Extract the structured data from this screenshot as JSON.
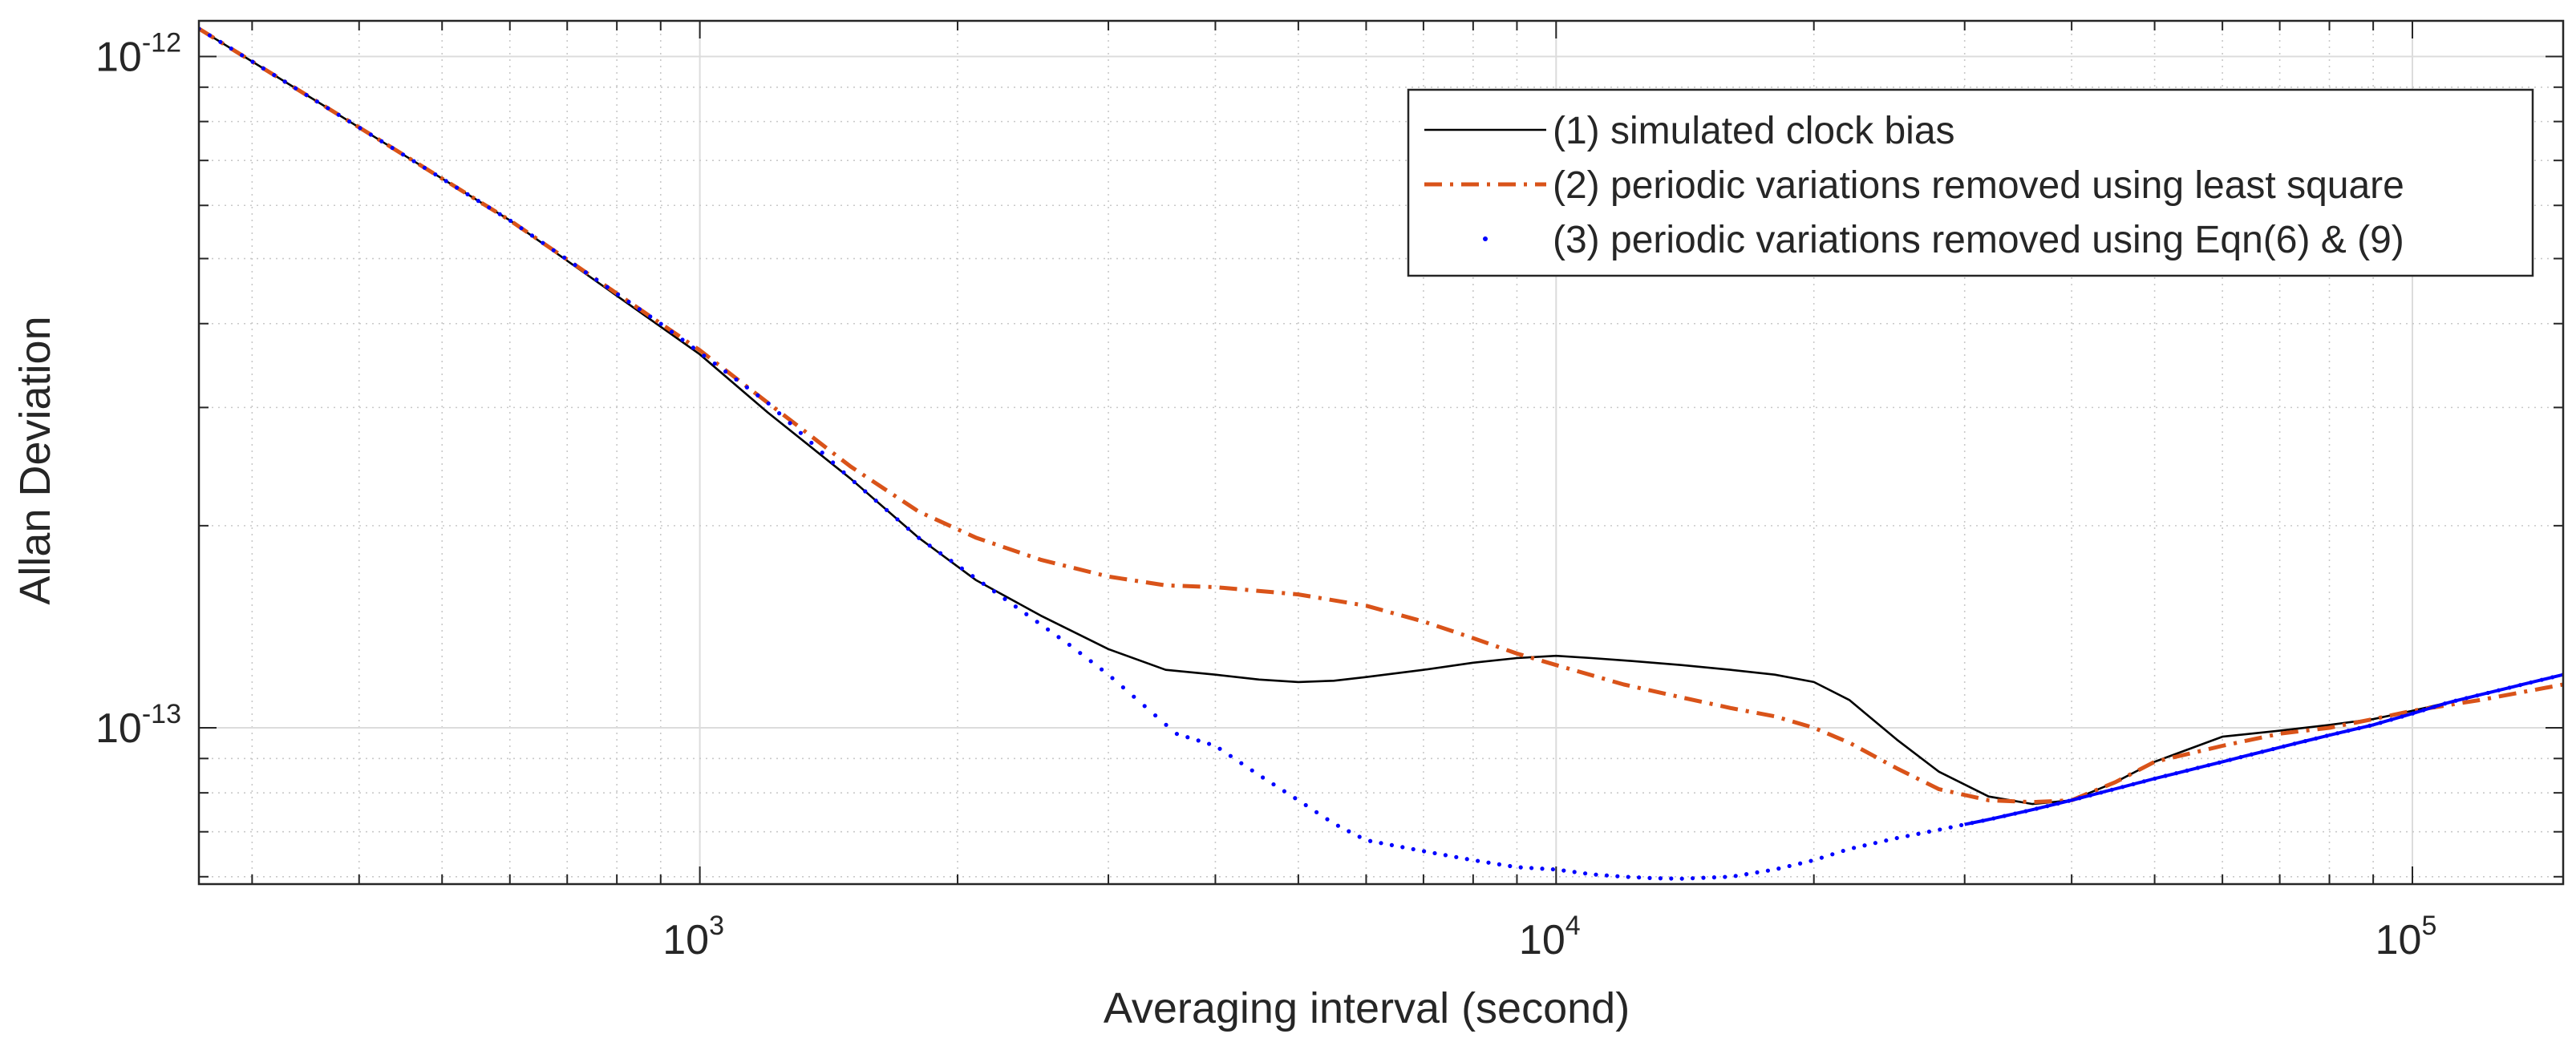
{
  "chart_data": {
    "type": "line",
    "title": "",
    "xlabel": "Averaging interval (second)",
    "ylabel": "Allan Deviation",
    "xscale": "log",
    "yscale": "log",
    "xlim": [
      260,
      150000
    ],
    "ylim": [
      5.85e-14,
      1.13e-12
    ],
    "grid": true,
    "legend_position": "top-right",
    "x_ticks": [
      {
        "value": 1000,
        "base": "10",
        "exp": "3"
      },
      {
        "value": 10000,
        "base": "10",
        "exp": "4"
      },
      {
        "value": 100000,
        "base": "10",
        "exp": "5"
      }
    ],
    "y_ticks": [
      {
        "value": 1e-13,
        "base": "10",
        "exp": "-13"
      },
      {
        "value": 1e-12,
        "base": "10",
        "exp": "-12"
      }
    ],
    "series": [
      {
        "name": "(1) simulated clock bias",
        "style": "solid",
        "color": "#000000",
        "x": [
          260,
          600,
          1000,
          1200,
          1500,
          1800,
          2100,
          2500,
          3000,
          3500,
          4000,
          4500,
          5000,
          5500,
          6000,
          7000,
          8000,
          9000,
          10000,
          11000,
          12000,
          14000,
          16000,
          18000,
          20000,
          22000,
          25000,
          28000,
          32000,
          36000,
          40000,
          45000,
          50000,
          60000,
          70000,
          80000,
          90000,
          100000,
          110000,
          120000,
          135000,
          150000
        ],
        "values": [
          1.1e-12,
          5.7e-13,
          3.6e-13,
          2.95e-13,
          2.35e-13,
          1.92e-13,
          1.66e-13,
          1.47e-13,
          1.31e-13,
          1.22e-13,
          1.2e-13,
          1.18e-13,
          1.17e-13,
          1.175e-13,
          1.19e-13,
          1.22e-13,
          1.25e-13,
          1.27e-13,
          1.28e-13,
          1.27e-13,
          1.26e-13,
          1.24e-13,
          1.22e-13,
          1.2e-13,
          1.17e-13,
          1.1e-13,
          9.6e-14,
          8.6e-14,
          7.9e-14,
          7.7e-14,
          7.8e-14,
          8.3e-14,
          8.9e-14,
          9.7e-14,
          9.9e-14,
          1.01e-13,
          1.03e-13,
          1.06e-13,
          1.09e-13,
          1.12e-13,
          1.16e-13,
          1.2e-13
        ]
      },
      {
        "name": "(2) periodic variations removed using least square",
        "style": "dashdot",
        "color": "#D95319",
        "x": [
          260,
          600,
          1000,
          1200,
          1500,
          1800,
          2100,
          2500,
          3000,
          3500,
          4000,
          5000,
          6000,
          7000,
          8000,
          9000,
          10000,
          12000,
          14000,
          16000,
          18000,
          20000,
          22000,
          25000,
          28000,
          32000,
          36000,
          40000,
          45000,
          50000,
          60000,
          70000,
          80000,
          90000,
          100000,
          120000,
          150000
        ],
        "values": [
          1.1e-12,
          5.7e-13,
          3.65e-13,
          3.05e-13,
          2.45e-13,
          2.1e-13,
          1.92e-13,
          1.78e-13,
          1.68e-13,
          1.63e-13,
          1.62e-13,
          1.58e-13,
          1.52e-13,
          1.44e-13,
          1.36e-13,
          1.29e-13,
          1.24e-13,
          1.16e-13,
          1.11e-13,
          1.07e-13,
          1.04e-13,
          1e-13,
          9.5e-14,
          8.7e-14,
          8.1e-14,
          7.8e-14,
          7.75e-14,
          7.8e-14,
          8.3e-14,
          8.9e-14,
          9.4e-14,
          9.8e-14,
          1e-13,
          1.03e-13,
          1.06e-13,
          1.1e-13,
          1.16e-13
        ]
      },
      {
        "name": "(3) periodic variations removed using Eqn(6) & (9)",
        "style": "dotted",
        "color": "#0000FF",
        "x": [
          260,
          600,
          900,
          1200,
          1500,
          1800,
          2100,
          2400,
          2700,
          3000,
          3300,
          3600,
          4000,
          4500,
          5000,
          5500,
          6000,
          7000,
          8000,
          9000,
          10000,
          11000,
          12000,
          13000,
          14000,
          16000,
          18000,
          20000,
          22000,
          25000,
          28000,
          32000,
          36000,
          40000,
          50000,
          60000,
          70000,
          80000,
          90000,
          100000,
          110000,
          120000,
          150000
        ],
        "values": [
          1.1e-12,
          5.7e-13,
          4e-13,
          3.05e-13,
          2.35e-13,
          1.92e-13,
          1.67e-13,
          1.48e-13,
          1.33e-13,
          1.2e-13,
          1.08e-13,
          9.8e-14,
          9.4e-14,
          8.5e-14,
          7.8e-14,
          7.2e-14,
          6.8e-14,
          6.55e-14,
          6.35e-14,
          6.2e-14,
          6.15e-14,
          6.05e-14,
          6e-14,
          5.97e-14,
          5.96e-14,
          6e-14,
          6.15e-14,
          6.35e-14,
          6.6e-14,
          6.85e-14,
          7.05e-14,
          7.3e-14,
          7.55e-14,
          7.8e-14,
          8.4e-14,
          8.9e-14,
          9.35e-14,
          9.75e-14,
          1.01e-13,
          1.05e-13,
          1.09e-13,
          1.12e-13,
          1.2e-13
        ]
      }
    ]
  }
}
